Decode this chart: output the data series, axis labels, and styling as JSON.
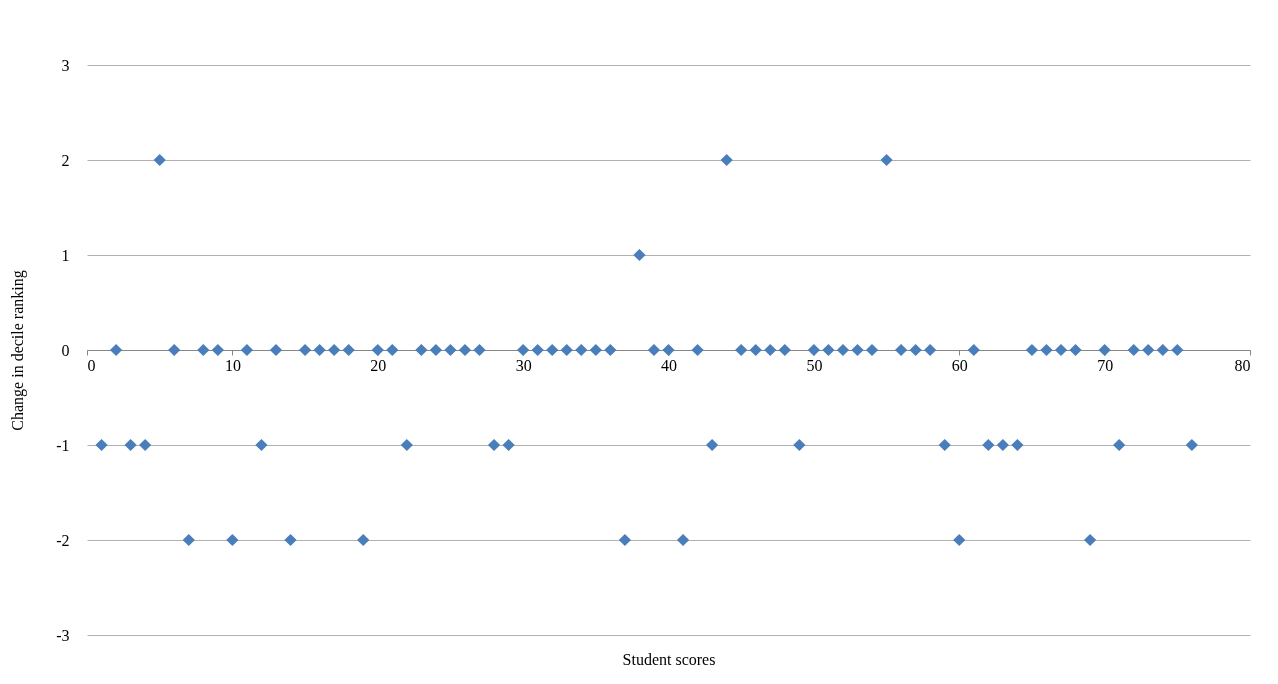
{
  "chart_data": {
    "type": "scatter",
    "xlabel": "Student scores",
    "ylabel": "Change in decile ranking",
    "x": [
      1,
      2,
      3,
      4,
      5,
      6,
      7,
      8,
      9,
      10,
      11,
      12,
      13,
      14,
      15,
      16,
      17,
      18,
      19,
      20,
      21,
      22,
      23,
      24,
      25,
      26,
      27,
      28,
      29,
      30,
      31,
      32,
      33,
      34,
      35,
      36,
      37,
      38,
      39,
      40,
      41,
      42,
      43,
      44,
      45,
      46,
      47,
      48,
      49,
      50,
      51,
      52,
      53,
      54,
      55,
      56,
      57,
      58,
      59,
      60,
      61,
      62,
      63,
      64,
      65,
      66,
      67,
      68,
      69,
      70,
      71,
      72,
      73,
      74,
      75,
      76
    ],
    "series": [
      {
        "color": "#4a7ebb",
        "values": [
          -1,
          0,
          -1,
          -1,
          2,
          0,
          -2,
          0,
          0,
          -2,
          0,
          -1,
          0,
          -2,
          0,
          0,
          0,
          0,
          -2,
          0,
          0,
          -1,
          0,
          0,
          0,
          0,
          0,
          -1,
          -1,
          0,
          0,
          0,
          0,
          0,
          0,
          0,
          -2,
          1,
          0,
          0,
          -2,
          0,
          -1,
          2,
          0,
          0,
          0,
          0,
          -1,
          0,
          0,
          0,
          0,
          0,
          2,
          0,
          0,
          0,
          -1,
          -2,
          0,
          -1,
          -1,
          -1,
          0,
          0,
          0,
          0,
          -2,
          0,
          -1,
          0,
          0,
          0,
          0,
          -1
        ]
      }
    ],
    "xlim": [
      0,
      80
    ],
    "xticks": [
      0,
      10,
      20,
      30,
      40,
      50,
      60,
      70,
      80
    ],
    "ylim": [
      -3,
      3
    ],
    "yticks": [
      -3,
      -2,
      -1,
      0,
      1,
      2,
      3
    ],
    "grid": "y",
    "marker": "diamond"
  }
}
